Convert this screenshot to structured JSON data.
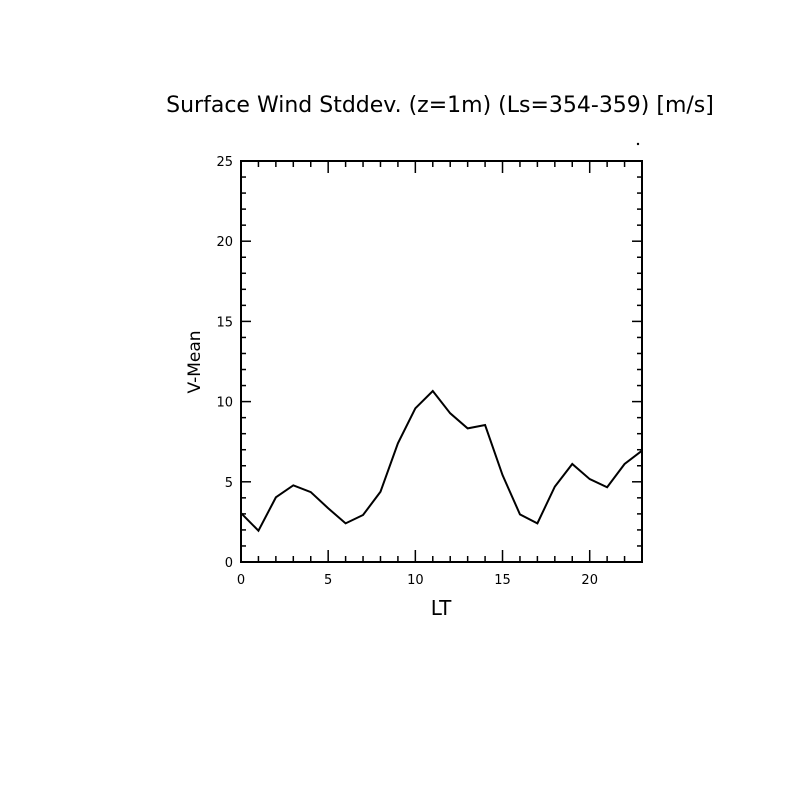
{
  "chart_data": {
    "type": "line",
    "title": "Surface Wind Stddev. (z=1m) (Ls=354-359) [m/s]",
    "xlabel": "LT",
    "ylabel": "V-Mean",
    "xlim": [
      0,
      23
    ],
    "ylim": [
      0,
      25
    ],
    "xticks": [
      0,
      5,
      10,
      15,
      20
    ],
    "yticks": [
      0,
      5,
      10,
      15,
      20,
      25
    ],
    "grid": false,
    "x": [
      0,
      1,
      2,
      3,
      4,
      5,
      6,
      7,
      8,
      9,
      10,
      11,
      12,
      13,
      14,
      15,
      16,
      17,
      18,
      19,
      20,
      21,
      22,
      23
    ],
    "series": [
      {
        "name": "V-Mean",
        "color": "#000000",
        "values": [
          3.05,
          1.95,
          4.03,
          4.78,
          4.36,
          3.35,
          2.41,
          2.93,
          4.38,
          7.4,
          9.58,
          10.66,
          9.27,
          8.33,
          8.54,
          5.42,
          2.97,
          2.41,
          4.7,
          6.11,
          5.17,
          4.66,
          6.11,
          6.94
        ]
      }
    ]
  }
}
